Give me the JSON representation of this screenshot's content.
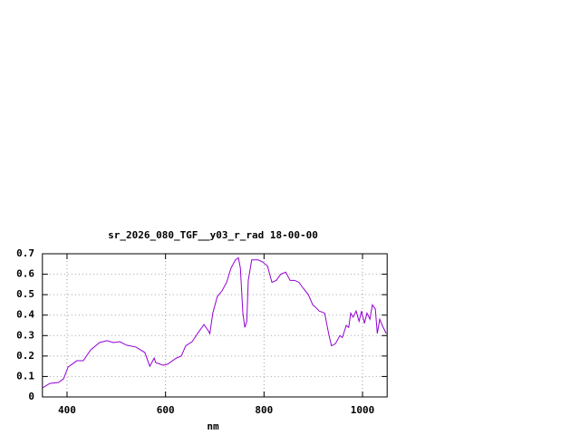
{
  "chart_data": {
    "type": "line",
    "title": "sr_2026_080_TGF__y03_r_rad 18-00-00",
    "x_label": "nm",
    "xlim": [
      350,
      1050
    ],
    "xticks": [
      400,
      600,
      800,
      1000
    ],
    "ylim": [
      0,
      0.7
    ],
    "yticks": [
      0,
      0.1,
      0.2,
      0.3,
      0.4,
      0.5,
      0.6,
      0.7
    ],
    "grid": true,
    "series": [
      {
        "color": "#9400d3",
        "x": [
          350,
          365,
          383,
          393,
          402,
          420,
          433,
          448,
          466,
          481,
          494,
          507,
          521,
          540,
          558,
          568,
          577,
          580,
          595,
          604,
          622,
          632,
          641,
          654,
          665,
          678,
          687,
          690,
          696,
          705,
          715,
          724,
          733,
          742,
          748,
          752,
          757,
          761,
          765,
          768,
          775,
          788,
          797,
          807,
          816,
          825,
          834,
          844,
          853,
          862,
          871,
          880,
          890,
          899,
          904,
          912,
          923,
          932,
          937,
          945,
          954,
          959,
          967,
          972,
          976,
          981,
          987,
          993,
          998,
          1004,
          1009,
          1015,
          1020,
          1026,
          1030,
          1035,
          1040,
          1048
        ],
        "values": [
          0.044,
          0.066,
          0.071,
          0.089,
          0.146,
          0.177,
          0.177,
          0.23,
          0.266,
          0.275,
          0.266,
          0.27,
          0.253,
          0.244,
          0.217,
          0.15,
          0.19,
          0.168,
          0.155,
          0.16,
          0.19,
          0.2,
          0.25,
          0.27,
          0.31,
          0.354,
          0.323,
          0.31,
          0.41,
          0.49,
          0.52,
          0.56,
          0.63,
          0.67,
          0.68,
          0.63,
          0.41,
          0.34,
          0.37,
          0.57,
          0.67,
          0.67,
          0.66,
          0.64,
          0.56,
          0.57,
          0.6,
          0.61,
          0.57,
          0.57,
          0.56,
          0.53,
          0.5,
          0.45,
          0.44,
          0.42,
          0.41,
          0.3,
          0.25,
          0.26,
          0.3,
          0.29,
          0.35,
          0.34,
          0.41,
          0.39,
          0.42,
          0.37,
          0.42,
          0.36,
          0.41,
          0.38,
          0.45,
          0.43,
          0.31,
          0.38,
          0.35,
          0.31
        ]
      }
    ]
  }
}
